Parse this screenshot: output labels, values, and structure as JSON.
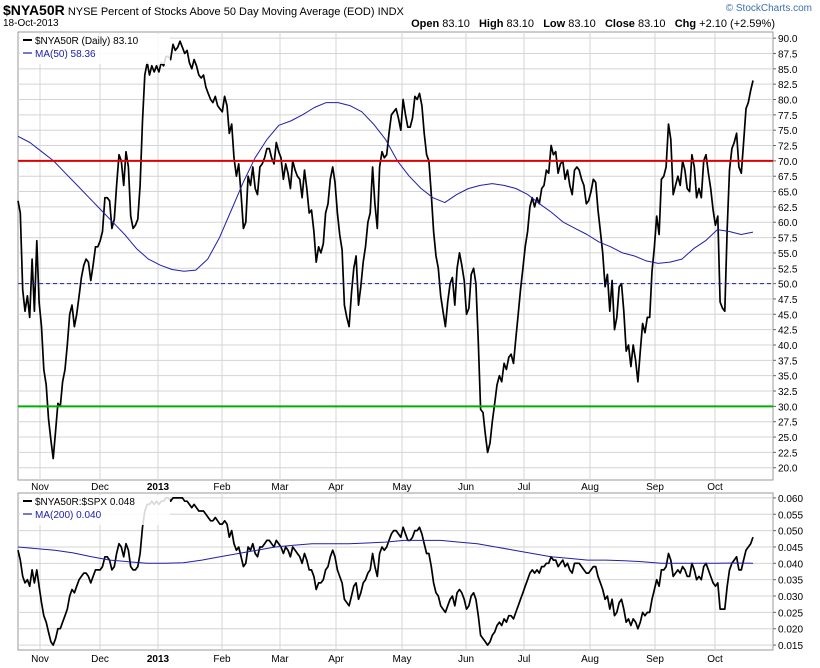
{
  "header": {
    "symbol": "$NYA50R",
    "description": "NYSE Percent of Stocks Above 50 Day Moving Average (EOD)",
    "exchange": "INDX",
    "date": "18-Oct-2013",
    "open_label": "Open",
    "open": "83.10",
    "high_label": "High",
    "high": "83.10",
    "low_label": "Low",
    "low": "83.10",
    "close_label": "Close",
    "close": "83.10",
    "chg_label": "Chg",
    "chg": "+2.10 (+2.59%)",
    "credit": "© StockCharts.com",
    "credit_color": "#3d6fb0"
  },
  "chart_data": [
    {
      "type": "line",
      "panel": "main",
      "ylim": [
        18,
        91
      ],
      "yticks": [
        "20.0",
        "22.5",
        "25.0",
        "27.5",
        "30.0",
        "32.5",
        "35.0",
        "37.5",
        "40.0",
        "42.5",
        "45.0",
        "47.5",
        "50.0",
        "52.5",
        "55.0",
        "57.5",
        "60.0",
        "62.5",
        "65.0",
        "67.5",
        "70.0",
        "72.5",
        "75.0",
        "77.5",
        "80.0",
        "82.5",
        "85.0",
        "87.5",
        "90.0"
      ],
      "xticks": [
        "Nov",
        "Dec",
        "2013",
        "Feb",
        "Mar",
        "Apr",
        "May",
        "Jun",
        "Jul",
        "Aug",
        "Sep",
        "Oct"
      ],
      "grid": true,
      "legend_position": "top-left",
      "series": [
        {
          "name": "$NYA50R (Daily) 83.10",
          "color": "#000000",
          "values": [
            63.5,
            61.5,
            49,
            45.5,
            48,
            44.5,
            54,
            45.5,
            57,
            47,
            43,
            36,
            33.5,
            28,
            24.5,
            21.5,
            26,
            30.5,
            30,
            34,
            36,
            40,
            45,
            46.5,
            43,
            45,
            48,
            51,
            53,
            54,
            53.5,
            50.5,
            53,
            56,
            56,
            57,
            58.5,
            64,
            64,
            63.5,
            59,
            60.5,
            66,
            71,
            70,
            66,
            71.5,
            69,
            61,
            59,
            59.5,
            60.5,
            66,
            76.5,
            84,
            86,
            84,
            85.5,
            84.5,
            85.5,
            84.5,
            86,
            85.5,
            87,
            87,
            86.5,
            89,
            88,
            88.5,
            89.5,
            88.5,
            87.5,
            88,
            86,
            85,
            86.5,
            85.5,
            84,
            83.5,
            84,
            82,
            81,
            80,
            79.5,
            80.5,
            79,
            78.5,
            78,
            80.5,
            79,
            74.5,
            76,
            70.5,
            67.5,
            69.5,
            64.5,
            59,
            60,
            67.5,
            66,
            69,
            65.5,
            64.5,
            69,
            69.5,
            70.5,
            72,
            72,
            70.5,
            69.5,
            73,
            71.5,
            70.5,
            67,
            69.5,
            68,
            65.5,
            70,
            68.5,
            67.5,
            67,
            64,
            68.5,
            65.5,
            61.5,
            62,
            58.5,
            53.5,
            56,
            55,
            56.5,
            61.5,
            63,
            67,
            69,
            66.5,
            61.5,
            58,
            55.5,
            46.5,
            44.5,
            43,
            48.5,
            52.5,
            54.5,
            46.5,
            49.5,
            53.5,
            56,
            60,
            61.5,
            69,
            63,
            59,
            69,
            71.5,
            70.5,
            71,
            74.5,
            77.5,
            78,
            78.5,
            77,
            75,
            80,
            77.5,
            75.5,
            75.5,
            77,
            80.5,
            80,
            81,
            79,
            74.5,
            71,
            70,
            64.5,
            58.5,
            54.5,
            52.5,
            48,
            45.5,
            43,
            47,
            50,
            51,
            46.5,
            52.5,
            55,
            53,
            50.5,
            45,
            46,
            51.5,
            52.5,
            50,
            40.5,
            29.5,
            29,
            25.5,
            22.5,
            24,
            27.5,
            30.5,
            33.5,
            35,
            34,
            37,
            36,
            38,
            38.5,
            37,
            41,
            45,
            49,
            52.5,
            56,
            58.5,
            62.5,
            64,
            62.5,
            64,
            63,
            65.5,
            66,
            68.5,
            68,
            72.5,
            71,
            71.5,
            68,
            69.5,
            70,
            67,
            68.5,
            66,
            64.5,
            68.5,
            69,
            68.5,
            67,
            66,
            63,
            63.5,
            65,
            67,
            66.5,
            62,
            58.5,
            55,
            49.5,
            51.5,
            45.5,
            50.5,
            42.5,
            44.5,
            49.5,
            50,
            45.5,
            39,
            40,
            36.5,
            40,
            37.5,
            34,
            39,
            43.5,
            42,
            44.5,
            44.5,
            52,
            56,
            61,
            58,
            67,
            67.5,
            69,
            76,
            73.5,
            64.5,
            66,
            67.5,
            66,
            70,
            68.5,
            65.5,
            65,
            71,
            69,
            64,
            65.5,
            64,
            70,
            71,
            68,
            65.5,
            62,
            59.5,
            61,
            47,
            46,
            45.5,
            59,
            68.5,
            72,
            73,
            74.5,
            69,
            68,
            73,
            78.5,
            79.5,
            81.5,
            83.1
          ]
        },
        {
          "name": "MA(50) 58.36",
          "color": "#2020a8",
          "values": [
            74,
            73,
            71.5,
            70,
            68,
            66,
            64,
            62,
            60,
            58,
            55.7,
            54,
            53,
            52.3,
            52,
            52.2,
            54,
            57.5,
            62,
            66.5,
            70.5,
            73.5,
            75.8,
            76.5,
            77.5,
            78.7,
            79.5,
            79.5,
            79,
            78,
            76,
            73.5,
            70,
            67.5,
            65.5,
            64,
            63.2,
            64.5,
            65.5,
            66,
            66.3,
            66,
            65.5,
            64.5,
            63,
            61.6,
            60,
            59,
            58,
            56.8,
            56,
            55,
            54.5,
            53.7,
            53.3,
            53.5,
            54,
            55.7,
            57,
            58.8,
            58.5,
            58,
            58.4
          ]
        },
        {
          "name": "70 level",
          "color": "#e00000",
          "values": [
            70
          ]
        },
        {
          "name": "50 level",
          "color": "#2020a8",
          "values": [
            50
          ]
        },
        {
          "name": "30 level",
          "color": "#00b000",
          "values": [
            30
          ]
        }
      ]
    },
    {
      "type": "line",
      "panel": "lower",
      "ylim": [
        0.0135,
        0.0615
      ],
      "yticks": [
        "0.015",
        "0.020",
        "0.025",
        "0.030",
        "0.035",
        "0.040",
        "0.045",
        "0.050",
        "0.055",
        "0.060"
      ],
      "xticks": [
        "Nov",
        "Dec",
        "2013",
        "Feb",
        "Mar",
        "Apr",
        "May",
        "Jun",
        "Jul",
        "Aug",
        "Sep",
        "Oct"
      ],
      "grid": true,
      "legend_position": "top-left",
      "series": [
        {
          "name": "$NYA50R:$SPX 0.048",
          "color": "#000000",
          "values": [
            0.044,
            0.041,
            0.036,
            0.034,
            0.035,
            0.033,
            0.038,
            0.034,
            0.038,
            0.033,
            0.028,
            0.024,
            0.022,
            0.019,
            0.016,
            0.015,
            0.017,
            0.02,
            0.02,
            0.022,
            0.024,
            0.026,
            0.03,
            0.032,
            0.031,
            0.033,
            0.035,
            0.036,
            0.037,
            0.037,
            0.036,
            0.034,
            0.036,
            0.038,
            0.038,
            0.038,
            0.039,
            0.042,
            0.042,
            0.041,
            0.038,
            0.039,
            0.043,
            0.046,
            0.045,
            0.042,
            0.046,
            0.044,
            0.039,
            0.038,
            0.038,
            0.039,
            0.043,
            0.051,
            0.056,
            0.058,
            0.058,
            0.059,
            0.058,
            0.059,
            0.058,
            0.059,
            0.059,
            0.06,
            0.06,
            0.059,
            0.06,
            0.06,
            0.06,
            0.06,
            0.06,
            0.059,
            0.059,
            0.058,
            0.057,
            0.058,
            0.057,
            0.056,
            0.056,
            0.056,
            0.055,
            0.054,
            0.053,
            0.053,
            0.054,
            0.053,
            0.052,
            0.052,
            0.053,
            0.052,
            0.048,
            0.05,
            0.046,
            0.044,
            0.045,
            0.042,
            0.039,
            0.04,
            0.045,
            0.044,
            0.046,
            0.043,
            0.042,
            0.045,
            0.045,
            0.046,
            0.047,
            0.047,
            0.046,
            0.045,
            0.047,
            0.046,
            0.045,
            0.043,
            0.045,
            0.044,
            0.042,
            0.045,
            0.044,
            0.043,
            0.042,
            0.04,
            0.043,
            0.041,
            0.038,
            0.038,
            0.036,
            0.032,
            0.034,
            0.034,
            0.035,
            0.038,
            0.039,
            0.042,
            0.044,
            0.042,
            0.038,
            0.036,
            0.034,
            0.029,
            0.028,
            0.027,
            0.03,
            0.033,
            0.034,
            0.029,
            0.031,
            0.034,
            0.035,
            0.037,
            0.038,
            0.043,
            0.039,
            0.036,
            0.043,
            0.045,
            0.044,
            0.045,
            0.047,
            0.049,
            0.05,
            0.05,
            0.049,
            0.048,
            0.051,
            0.049,
            0.047,
            0.047,
            0.048,
            0.05,
            0.05,
            0.051,
            0.049,
            0.046,
            0.043,
            0.043,
            0.039,
            0.034,
            0.031,
            0.03,
            0.027,
            0.026,
            0.025,
            0.027,
            0.029,
            0.03,
            0.027,
            0.031,
            0.032,
            0.031,
            0.029,
            0.026,
            0.027,
            0.03,
            0.031,
            0.029,
            0.024,
            0.018,
            0.017,
            0.016,
            0.015,
            0.016,
            0.018,
            0.019,
            0.021,
            0.022,
            0.021,
            0.023,
            0.022,
            0.024,
            0.024,
            0.023,
            0.025,
            0.027,
            0.029,
            0.031,
            0.033,
            0.035,
            0.037,
            0.038,
            0.037,
            0.038,
            0.037,
            0.039,
            0.039,
            0.04,
            0.04,
            0.042,
            0.041,
            0.041,
            0.039,
            0.04,
            0.041,
            0.039,
            0.04,
            0.038,
            0.037,
            0.04,
            0.04,
            0.04,
            0.039,
            0.038,
            0.037,
            0.037,
            0.038,
            0.039,
            0.039,
            0.036,
            0.034,
            0.032,
            0.029,
            0.03,
            0.026,
            0.029,
            0.024,
            0.025,
            0.028,
            0.029,
            0.026,
            0.022,
            0.023,
            0.021,
            0.023,
            0.022,
            0.02,
            0.022,
            0.025,
            0.024,
            0.025,
            0.025,
            0.029,
            0.032,
            0.035,
            0.033,
            0.038,
            0.038,
            0.039,
            0.043,
            0.041,
            0.036,
            0.037,
            0.038,
            0.037,
            0.039,
            0.038,
            0.036,
            0.036,
            0.04,
            0.038,
            0.035,
            0.036,
            0.035,
            0.039,
            0.04,
            0.038,
            0.036,
            0.034,
            0.033,
            0.034,
            0.026,
            0.026,
            0.026,
            0.033,
            0.038,
            0.04,
            0.041,
            0.042,
            0.038,
            0.038,
            0.041,
            0.044,
            0.045,
            0.046,
            0.048
          ]
        },
        {
          "name": "MA(200) 0.040",
          "color": "#2020a8",
          "values": [
            0.045,
            0.0445,
            0.044,
            0.0432,
            0.042,
            0.041,
            0.0405,
            0.04,
            0.04,
            0.0402,
            0.041,
            0.042,
            0.043,
            0.044,
            0.045,
            0.0455,
            0.046,
            0.046,
            0.046,
            0.0462,
            0.0465,
            0.047,
            0.047,
            0.047,
            0.0465,
            0.046,
            0.045,
            0.044,
            0.043,
            0.042,
            0.0415,
            0.041,
            0.041,
            0.0408,
            0.0405,
            0.04,
            0.04,
            0.04,
            0.04,
            0.0401,
            0.04
          ]
        }
      ]
    }
  ]
}
